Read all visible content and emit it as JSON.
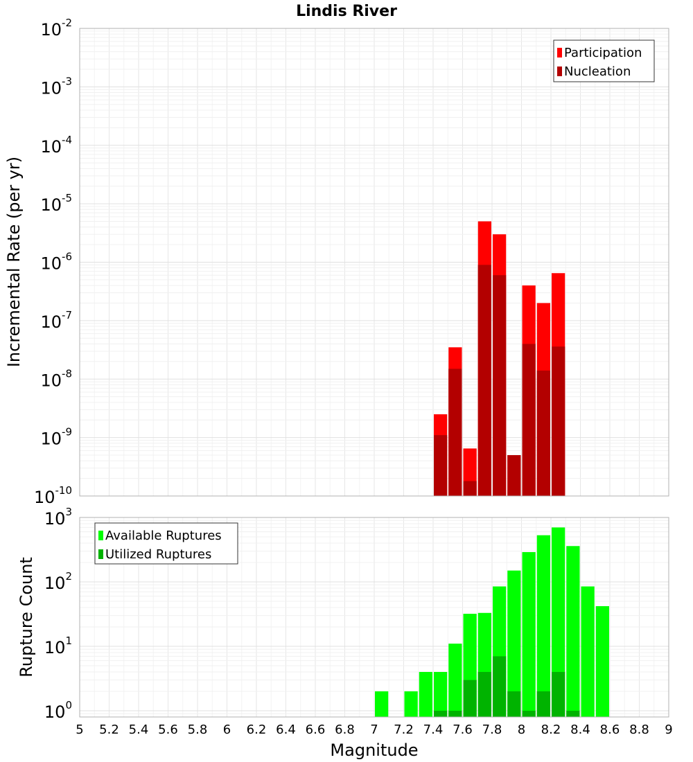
{
  "chart_data": [
    {
      "type": "bar",
      "title": "Lindis River",
      "xlabel": "",
      "ylabel": "Incremental Rate (per yr)",
      "yscale": "log",
      "xlim": [
        5,
        9
      ],
      "ylim": [
        1e-10,
        0.01
      ],
      "ytick_exponents": [
        "-10",
        "-9",
        "-8",
        "-7",
        "-6",
        "-5",
        "-4",
        "-3",
        "-2"
      ],
      "legend_placement": "top-right",
      "grid": true,
      "x": [
        7.45,
        7.55,
        7.65,
        7.75,
        7.85,
        7.95,
        8.05,
        8.15,
        8.25
      ],
      "series": [
        {
          "name": "Participation",
          "color": "#ff0000",
          "values": [
            2.5e-09,
            3.5e-08,
            6.5e-10,
            5e-06,
            3e-06,
            5e-10,
            4e-07,
            2e-07,
            6.5e-07
          ]
        },
        {
          "name": "Nucleation",
          "color": "#b30000",
          "values": [
            1.1e-09,
            1.5e-08,
            1.8e-10,
            9e-07,
            6e-07,
            5e-10,
            4e-08,
            1.4e-08,
            3.6e-08
          ]
        }
      ]
    },
    {
      "type": "bar",
      "xlabel": "Magnitude",
      "ylabel": "Rupture Count",
      "yscale": "log",
      "xlim": [
        5,
        9
      ],
      "ylim": [
        0.8,
        1000
      ],
      "ytick_exponents": [
        "0",
        "1",
        "2",
        "3"
      ],
      "xticks": [
        "5",
        "5.2",
        "5.4",
        "5.6",
        "5.8",
        "6",
        "6.2",
        "6.4",
        "6.6",
        "6.8",
        "7",
        "7.2",
        "7.4",
        "7.6",
        "7.8",
        "8",
        "8.2",
        "8.4",
        "8.6",
        "8.8",
        "9"
      ],
      "legend_placement": "top-left",
      "grid": true,
      "x": [
        7.05,
        7.25,
        7.35,
        7.45,
        7.55,
        7.65,
        7.75,
        7.85,
        7.95,
        8.05,
        8.15,
        8.25,
        8.35,
        8.45,
        8.55
      ],
      "series": [
        {
          "name": "Available Ruptures",
          "color": "#00ff00",
          "values": [
            2,
            2,
            4,
            4,
            11,
            32,
            33,
            85,
            150,
            290,
            530,
            700,
            360,
            85,
            42
          ]
        },
        {
          "name": "Utilized Ruptures",
          "color": "#00b300",
          "values": [
            null,
            null,
            null,
            1,
            1,
            3,
            4,
            7,
            2,
            1,
            2,
            4,
            1,
            null,
            null
          ]
        }
      ]
    }
  ]
}
